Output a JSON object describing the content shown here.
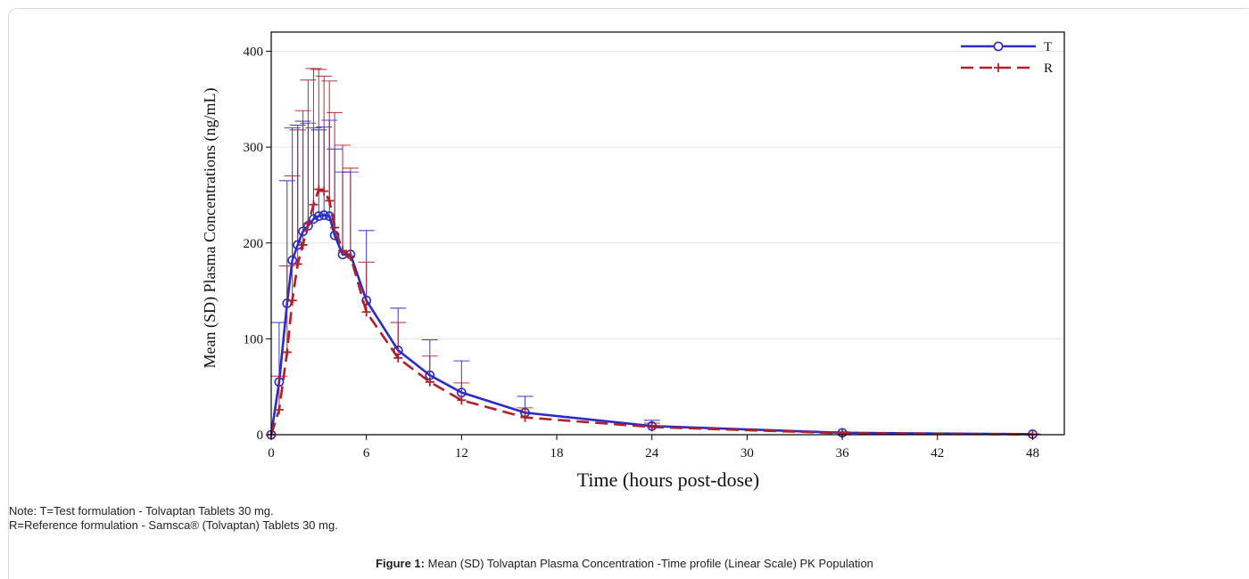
{
  "caption": {
    "label": "Figure 1:",
    "text": "Mean (SD) Tolvaptan Plasma Concentration -Time profile (Linear Scale) PK Population"
  },
  "notes": {
    "line1": "Note: T=Test formulation - Tolvaptan Tablets 30 mg.",
    "line2": "R=Reference formulation - Samsca® (Tolvaptan) Tablets 30 mg."
  },
  "chart_data": {
    "type": "line",
    "xlabel": "Time (hours post-dose)",
    "ylabel": "Mean (SD) Plasma Concentrations (ng/mL)",
    "xlim": [
      0,
      50
    ],
    "ylim": [
      0,
      420
    ],
    "xticks": [
      0,
      6,
      12,
      18,
      24,
      30,
      36,
      42,
      48
    ],
    "yticks": [
      0,
      100,
      200,
      300,
      400
    ],
    "grid": "horizontal",
    "legend_position": "top-right",
    "colors": {
      "T": "#2b2bc6",
      "R": "#b0202a",
      "grid": "#e6e6e6"
    },
    "series": [
      {
        "name": "T",
        "marker": "circle",
        "line_style": "solid",
        "x": [
          0,
          0.5,
          1,
          1.33,
          1.67,
          2,
          2.33,
          2.67,
          3,
          3.33,
          3.67,
          4,
          4.5,
          5,
          6,
          8,
          10,
          12,
          16,
          24,
          36,
          48
        ],
        "y": [
          0,
          55,
          137,
          182,
          198,
          212,
          218,
          225,
          228,
          229,
          228,
          208,
          188,
          188,
          140,
          88,
          62,
          44,
          23,
          9,
          2,
          0.5
        ],
        "sd": [
          0,
          62,
          128,
          138,
          125,
          115,
          107,
          95,
          90,
          92,
          100,
          90,
          86,
          86,
          73,
          44,
          37,
          33,
          17,
          6,
          1,
          0.3
        ]
      },
      {
        "name": "R",
        "marker": "plus",
        "line_style": "dashed",
        "x": [
          0,
          0.5,
          1,
          1.33,
          1.67,
          2,
          2.33,
          2.67,
          3,
          3.33,
          3.67,
          4,
          4.5,
          5,
          6,
          8,
          10,
          12,
          16,
          24,
          36,
          48
        ],
        "y": [
          0,
          26,
          86,
          140,
          178,
          198,
          220,
          240,
          256,
          254,
          244,
          216,
          192,
          186,
          128,
          80,
          55,
          36,
          18,
          8,
          1.5,
          0.3
        ],
        "sd": [
          0,
          35,
          90,
          130,
          140,
          140,
          150,
          142,
          125,
          120,
          125,
          120,
          110,
          92,
          52,
          37,
          27,
          18,
          10,
          4,
          1,
          0.2
        ]
      }
    ]
  }
}
